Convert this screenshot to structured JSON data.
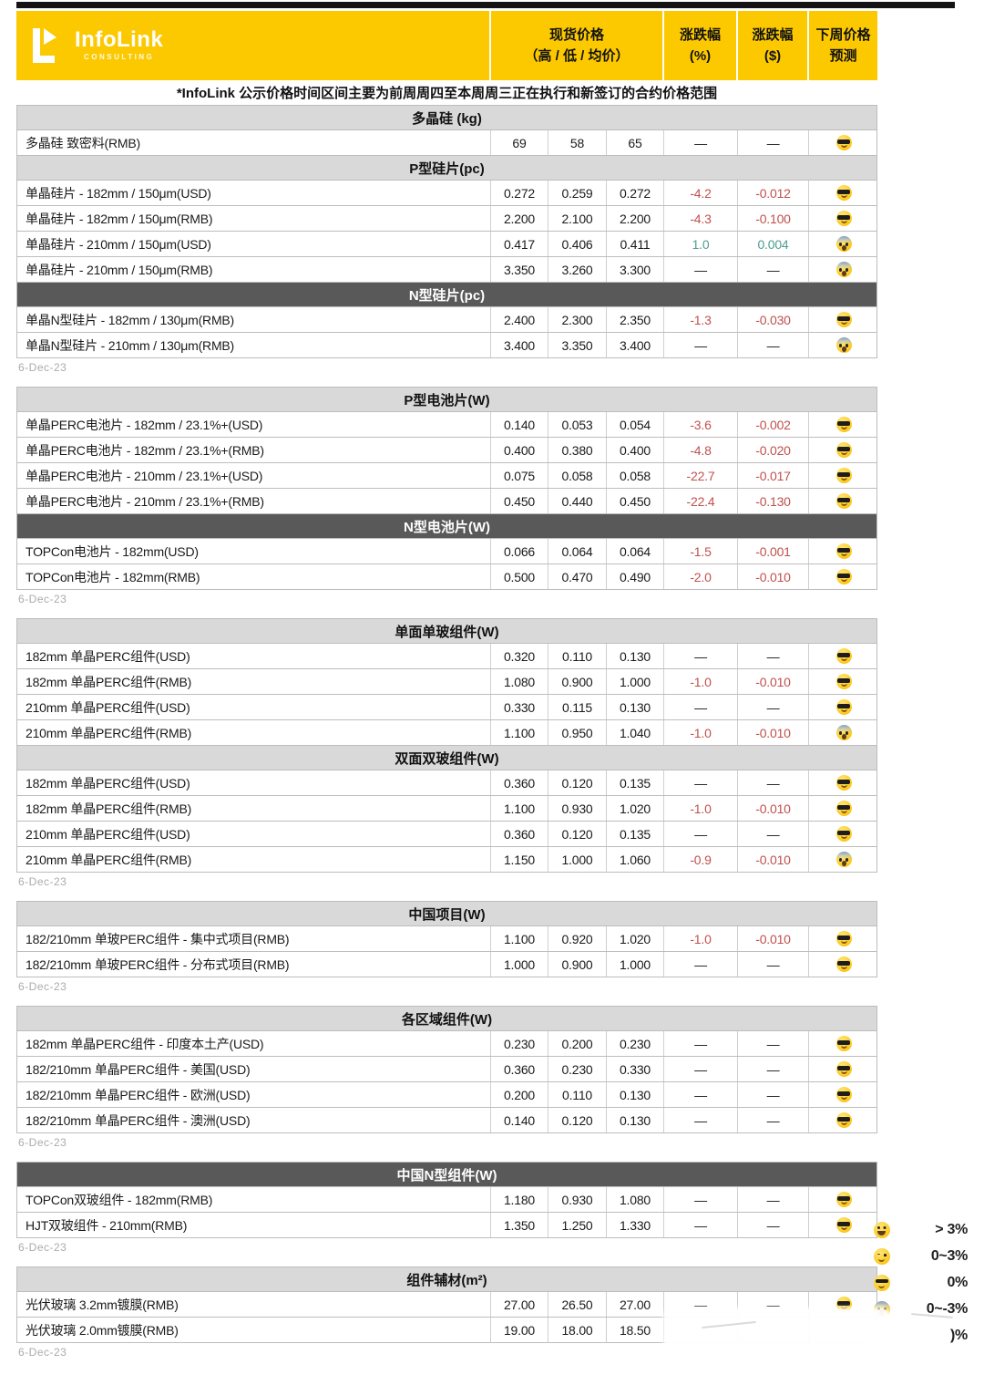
{
  "logo": {
    "brand": "InfoLink",
    "sub": "CONSULTING"
  },
  "header": {
    "spot_title": "现货价格",
    "spot_sub": "（高 / 低 / 均价）",
    "chg_pct_title": "涨跌幅",
    "chg_pct_sub": "(%)",
    "chg_abs_title": "涨跌幅",
    "chg_abs_sub": "($)",
    "forecast_title": "下周价格",
    "forecast_sub": "预测"
  },
  "note": "*InfoLink 公示价格时间区间主要为前周周四至本周周三正在执行和新签订的合约价格范围",
  "colors": {
    "brand_yellow": "#FCC900",
    "section_light": "#D9D9D9",
    "section_dark": "#595959",
    "negative_red": "#C0504D",
    "positive_teal": "#4F9B8F",
    "border_gray": "#BDBDBD"
  },
  "blocks": [
    {
      "date": "6-Dec-23",
      "sections": [
        {
          "title": "多晶硅 (kg)",
          "style": "light",
          "rows": [
            {
              "n": "多晶硅 致密料(RMB)",
              "h": "69",
              "l": "58",
              "a": "65",
              "p": "—",
              "u": "—",
              "f": "cool"
            }
          ]
        },
        {
          "title": "P型硅片(pc)",
          "style": "light",
          "rows": [
            {
              "n": "单晶硅片 - 182mm / 150μm(USD)",
              "h": "0.272",
              "l": "0.259",
              "a": "0.272",
              "p": "-4.2",
              "u": "-0.012",
              "f": "cool"
            },
            {
              "n": "单晶硅片 - 182mm / 150μm(RMB)",
              "h": "2.200",
              "l": "2.100",
              "a": "2.200",
              "p": "-4.3",
              "u": "-0.100",
              "f": "cool"
            },
            {
              "n": "单晶硅片 - 210mm / 150μm(USD)",
              "h": "0.417",
              "l": "0.406",
              "a": "0.411",
              "p": "1.0",
              "u": "0.004",
              "f": "scream"
            },
            {
              "n": "单晶硅片 - 210mm / 150μm(RMB)",
              "h": "3.350",
              "l": "3.260",
              "a": "3.300",
              "p": "—",
              "u": "—",
              "f": "scream"
            }
          ]
        },
        {
          "title": "N型硅片(pc)",
          "style": "dark",
          "rows": [
            {
              "n": "单晶N型硅片 - 182mm / 130μm(RMB)",
              "h": "2.400",
              "l": "2.300",
              "a": "2.350",
              "p": "-1.3",
              "u": "-0.030",
              "f": "cool"
            },
            {
              "n": "单晶N型硅片 - 210mm / 130μm(RMB)",
              "h": "3.400",
              "l": "3.350",
              "a": "3.400",
              "p": "—",
              "u": "—",
              "f": "scream"
            }
          ]
        }
      ]
    },
    {
      "date": "6-Dec-23",
      "sections": [
        {
          "title": "P型电池片(W)",
          "style": "light",
          "rows": [
            {
              "n": "单晶PERC电池片 - 182mm / 23.1%+(USD)",
              "h": "0.140",
              "l": "0.053",
              "a": "0.054",
              "p": "-3.6",
              "u": "-0.002",
              "f": "cool"
            },
            {
              "n": "单晶PERC电池片 - 182mm / 23.1%+(RMB)",
              "h": "0.400",
              "l": "0.380",
              "a": "0.400",
              "p": "-4.8",
              "u": "-0.020",
              "f": "cool"
            },
            {
              "n": "单晶PERC电池片 - 210mm / 23.1%+(USD)",
              "h": "0.075",
              "l": "0.058",
              "a": "0.058",
              "p": "-22.7",
              "u": "-0.017",
              "f": "cool"
            },
            {
              "n": "单晶PERC电池片 - 210mm / 23.1%+(RMB)",
              "h": "0.450",
              "l": "0.440",
              "a": "0.450",
              "p": "-22.4",
              "u": "-0.130",
              "f": "cool"
            }
          ]
        },
        {
          "title": "N型电池片(W)",
          "style": "dark",
          "rows": [
            {
              "n": "TOPCon电池片 - 182mm(USD)",
              "h": "0.066",
              "l": "0.064",
              "a": "0.064",
              "p": "-1.5",
              "u": "-0.001",
              "f": "cool"
            },
            {
              "n": "TOPCon电池片 - 182mm(RMB)",
              "h": "0.500",
              "l": "0.470",
              "a": "0.490",
              "p": "-2.0",
              "u": "-0.010",
              "f": "cool"
            }
          ]
        }
      ]
    },
    {
      "date": "6-Dec-23",
      "sections": [
        {
          "title": "单面单玻组件(W)",
          "style": "light",
          "rows": [
            {
              "n": "182mm 单晶PERC组件(USD)",
              "h": "0.320",
              "l": "0.110",
              "a": "0.130",
              "p": "—",
              "u": "—",
              "f": "cool"
            },
            {
              "n": "182mm 单晶PERC组件(RMB)",
              "h": "1.080",
              "l": "0.900",
              "a": "1.000",
              "p": "-1.0",
              "u": "-0.010",
              "f": "cool"
            },
            {
              "n": "210mm 单晶PERC组件(USD)",
              "h": "0.330",
              "l": "0.115",
              "a": "0.130",
              "p": "—",
              "u": "—",
              "f": "cool"
            },
            {
              "n": "210mm 单晶PERC组件(RMB)",
              "h": "1.100",
              "l": "0.950",
              "a": "1.040",
              "p": "-1.0",
              "u": "-0.010",
              "f": "scream"
            }
          ]
        },
        {
          "title": "双面双玻组件(W)",
          "style": "light",
          "rows": [
            {
              "n": "182mm 单晶PERC组件(USD)",
              "h": "0.360",
              "l": "0.120",
              "a": "0.135",
              "p": "—",
              "u": "—",
              "f": "cool"
            },
            {
              "n": "182mm 单晶PERC组件(RMB)",
              "h": "1.100",
              "l": "0.930",
              "a": "1.020",
              "p": "-1.0",
              "u": "-0.010",
              "f": "cool"
            },
            {
              "n": "210mm 单晶PERC组件(USD)",
              "h": "0.360",
              "l": "0.120",
              "a": "0.135",
              "p": "—",
              "u": "—",
              "f": "cool"
            },
            {
              "n": "210mm 单晶PERC组件(RMB)",
              "h": "1.150",
              "l": "1.000",
              "a": "1.060",
              "p": "-0.9",
              "u": "-0.010",
              "f": "scream"
            }
          ]
        }
      ]
    },
    {
      "date": "6-Dec-23",
      "sections": [
        {
          "title": "中国项目(W)",
          "style": "light",
          "rows": [
            {
              "n": "182/210mm 单玻PERC组件 - 集中式项目(RMB)",
              "h": "1.100",
              "l": "0.920",
              "a": "1.020",
              "p": "-1.0",
              "u": "-0.010",
              "f": "cool"
            },
            {
              "n": "182/210mm 单玻PERC组件 - 分布式项目(RMB)",
              "h": "1.000",
              "l": "0.900",
              "a": "1.000",
              "p": "—",
              "u": "—",
              "f": "cool"
            }
          ]
        }
      ]
    },
    {
      "date": "6-Dec-23",
      "sections": [
        {
          "title": "各区域组件(W)",
          "style": "light",
          "rows": [
            {
              "n": "182mm 单晶PERC组件 - 印度本土产(USD)",
              "h": "0.230",
              "l": "0.200",
              "a": "0.230",
              "p": "—",
              "u": "—",
              "f": "cool"
            },
            {
              "n": "182/210mm 单晶PERC组件 - 美国(USD)",
              "h": "0.360",
              "l": "0.230",
              "a": "0.330",
              "p": "—",
              "u": "—",
              "f": "cool"
            },
            {
              "n": "182/210mm 单晶PERC组件 - 欧洲(USD)",
              "h": "0.200",
              "l": "0.110",
              "a": "0.130",
              "p": "—",
              "u": "—",
              "f": "cool"
            },
            {
              "n": "182/210mm 单晶PERC组件 - 澳洲(USD)",
              "h": "0.140",
              "l": "0.120",
              "a": "0.130",
              "p": "—",
              "u": "—",
              "f": "cool"
            }
          ]
        }
      ]
    },
    {
      "date": "6-Dec-23",
      "sections": [
        {
          "title": "中国N型组件(W)",
          "style": "dark",
          "rows": [
            {
              "n": "TOPCon双玻组件 - 182mm(RMB)",
              "h": "1.180",
              "l": "0.930",
              "a": "1.080",
              "p": "—",
              "u": "—",
              "f": "cool"
            },
            {
              "n": "HJT双玻组件 - 210mm(RMB)",
              "h": "1.350",
              "l": "1.250",
              "a": "1.330",
              "p": "—",
              "u": "—",
              "f": "cool"
            }
          ]
        }
      ]
    },
    {
      "date": "6-Dec-23",
      "sections": [
        {
          "title": "组件辅材(m²)",
          "style": "light",
          "rows": [
            {
              "n": "光伏玻璃 3.2mm镀膜(RMB)",
              "h": "27.00",
              "l": "26.50",
              "a": "27.00",
              "p": "—",
              "u": "—",
              "f": "cool"
            },
            {
              "n": "光伏玻璃 2.0mm镀膜(RMB)",
              "h": "19.00",
              "l": "18.00",
              "a": "18.50",
              "p": "",
              "u": "",
              "f": "",
              "obscured": true
            }
          ]
        }
      ]
    }
  ],
  "legend": [
    {
      "emoji": "grin",
      "label": "> 3%"
    },
    {
      "emoji": "happy",
      "label": "0~3%"
    },
    {
      "emoji": "cool",
      "label": "0%"
    },
    {
      "emoji": "scream",
      "label": "0~-3%"
    },
    {
      "emoji": "cry",
      "label": ")%",
      "obscured": true
    }
  ]
}
